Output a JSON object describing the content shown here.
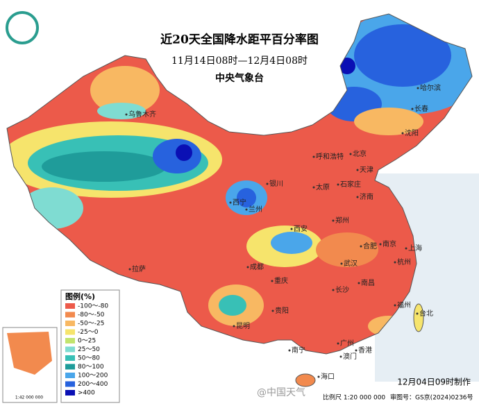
{
  "header": {
    "title": "近20天全国降水距平百分率图",
    "subtitle": "11月14日08时—12月4日08时",
    "agency": "中央气象台"
  },
  "legend": {
    "title": "图例(%)",
    "items": [
      {
        "label": "-100～-80",
        "color": "#ec5a4a"
      },
      {
        "label": "-80～-50",
        "color": "#f28a4e"
      },
      {
        "label": "-50～-25",
        "color": "#f8b862"
      },
      {
        "label": "-25～0",
        "color": "#f6e46c"
      },
      {
        "label": "0～25",
        "color": "#c2e46e"
      },
      {
        "label": "25～50",
        "color": "#7fdcd2"
      },
      {
        "label": "50～80",
        "color": "#38c0b6"
      },
      {
        "label": "80～100",
        "color": "#1f9c9a"
      },
      {
        "label": "100～200",
        "color": "#4aa6ea"
      },
      {
        "label": "200～400",
        "color": "#2762de"
      },
      {
        "label": ">400",
        "color": "#0a10b4"
      }
    ]
  },
  "cities": [
    "乌鲁木齐",
    "哈尔滨",
    "长春",
    "沈阳",
    "呼和浩特",
    "北京",
    "天津",
    "银川",
    "太原",
    "石家庄",
    "济南",
    "西宁",
    "兰州",
    "西安",
    "郑州",
    "合肥",
    "南京",
    "上海",
    "杭州",
    "武汉",
    "成都",
    "重庆",
    "长沙",
    "南昌",
    "拉萨",
    "贵阳",
    "昆明",
    "福州",
    "台北",
    "广州",
    "南宁",
    "澳门",
    "香港",
    "海口"
  ],
  "footer": {
    "made": "12月04日09时制作",
    "scale": "比例尺 1:20 000 000",
    "map_number": "审图号：GS京(2024)0236号",
    "watermark": "@中国天气",
    "inset_scale": "1:42 000 000"
  }
}
